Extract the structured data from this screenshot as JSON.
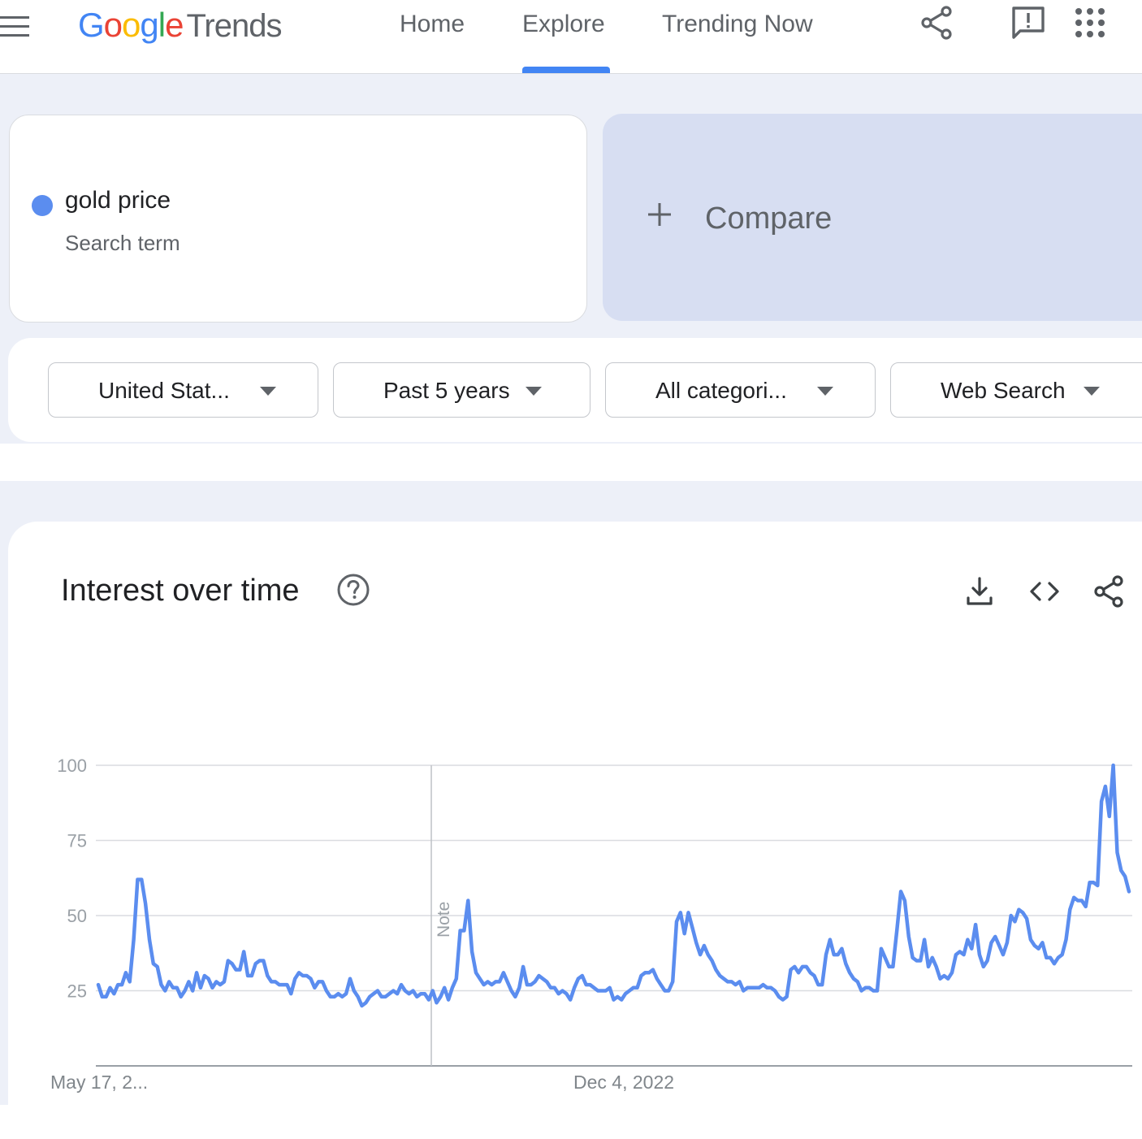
{
  "header": {
    "logo": {
      "google_letters": [
        "G",
        "o",
        "o",
        "g",
        "l",
        "e"
      ],
      "product": "Trends"
    },
    "nav": [
      {
        "label": "Home"
      },
      {
        "label": "Explore",
        "active": true
      },
      {
        "label": "Trending Now"
      }
    ],
    "icons": [
      "share-icon",
      "feedback-icon",
      "apps-grid-icon"
    ]
  },
  "search": {
    "term": {
      "name": "gold price",
      "type": "Search term",
      "color": "#5b8def"
    },
    "compare_label": "Compare"
  },
  "filters": {
    "region": "United Stat...",
    "time_range": "Past 5 years",
    "category": "All categori...",
    "property": "Web Search"
  },
  "interest_over_time": {
    "title": "Interest over time",
    "toolbar_icons": [
      "download-icon",
      "embed-code-icon",
      "share-icon"
    ],
    "note_label": "Note"
  },
  "chart_data": {
    "type": "line",
    "series_color": "#5b8def",
    "y_ticks": [
      25,
      50,
      75,
      100
    ],
    "ylim": [
      0,
      100
    ],
    "x_tick_labels": [
      "May 17, 2...",
      "Dec 4, 2022"
    ],
    "grid": true,
    "values": [
      27,
      23,
      23,
      26,
      24,
      27,
      27,
      31,
      28,
      42,
      62,
      62,
      54,
      42,
      34,
      33,
      27,
      25,
      28,
      26,
      26,
      23,
      25,
      28,
      25,
      31,
      26,
      30,
      29,
      26,
      28,
      27,
      28,
      35,
      34,
      32,
      32,
      38,
      30,
      30,
      34,
      35,
      35,
      30,
      28,
      28,
      27,
      27,
      27,
      24,
      29,
      31,
      30,
      30,
      29,
      26,
      28,
      28,
      25,
      23,
      23,
      24,
      23,
      24,
      29,
      25,
      23,
      20,
      21,
      23,
      24,
      25,
      23,
      23,
      24,
      25,
      24,
      27,
      25,
      24,
      25,
      23,
      24,
      24,
      22,
      25,
      21,
      23,
      26,
      22,
      26,
      29,
      45,
      45,
      55,
      38,
      31,
      29,
      27,
      28,
      27,
      28,
      28,
      31,
      28,
      25,
      23,
      26,
      33,
      27,
      27,
      28,
      30,
      29,
      28,
      26,
      26,
      24,
      25,
      24,
      22,
      26,
      29,
      30,
      27,
      27,
      26,
      25,
      25,
      25,
      26,
      22,
      23,
      22,
      24,
      25,
      26,
      26,
      30,
      31,
      31,
      32,
      29,
      27,
      25,
      25,
      28,
      48,
      51,
      44,
      51,
      46,
      41,
      37,
      40,
      37,
      35,
      32,
      30,
      29,
      28,
      28,
      27,
      28,
      25,
      26,
      26,
      26,
      26,
      27,
      26,
      26,
      25,
      23,
      22,
      23,
      32,
      33,
      31,
      33,
      33,
      31,
      30,
      27,
      27,
      37,
      42,
      37,
      37,
      39,
      34,
      31,
      29,
      28,
      25,
      26,
      26,
      25,
      25,
      39,
      36,
      33,
      33,
      45,
      58,
      55,
      43,
      36,
      35,
      35,
      42,
      33,
      36,
      33,
      29,
      30,
      29,
      31,
      37,
      38,
      37,
      42,
      39,
      47,
      37,
      33,
      35,
      41,
      43,
      40,
      37,
      41,
      50,
      48,
      52,
      51,
      49,
      42,
      40,
      39,
      41,
      36,
      36,
      34,
      36,
      37,
      42,
      52,
      56,
      55,
      55,
      53,
      61,
      61,
      60,
      88,
      93,
      83,
      100,
      71,
      65,
      63,
      58
    ]
  }
}
